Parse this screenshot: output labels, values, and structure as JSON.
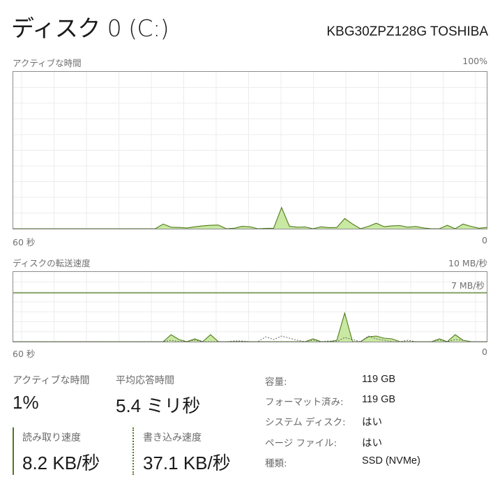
{
  "header": {
    "title": "ディスク 0 (C:)",
    "model": "KBG30ZPZ128G TOSHIBA"
  },
  "colors": {
    "line": "#4e7a1a",
    "fill": "#c9e8a2",
    "grid": "#ececec",
    "border": "#8c8c8c"
  },
  "chart_data": [
    {
      "type": "area",
      "title": "アクティブな時間",
      "ymax_label": "100%",
      "x_left_label": "60 秒",
      "x_right_label": "0",
      "ylim": [
        0,
        100
      ],
      "xlim": [
        60,
        0
      ],
      "grid": true,
      "series": [
        {
          "values": [
            0,
            0,
            0,
            0,
            0,
            0,
            0,
            0,
            0,
            0,
            0,
            0,
            0,
            0,
            0,
            0,
            0,
            0,
            0,
            3,
            1,
            0.8,
            0.5,
            1.2,
            1.8,
            2.2,
            2.3,
            0,
            0.3,
            1.5,
            1.2,
            0,
            0.2,
            0.3,
            13.5,
            1.5,
            1,
            1.1,
            0,
            1.2,
            0.7,
            0.8,
            6.5,
            3,
            0,
            1.5,
            3.5,
            1.3,
            1.8,
            2,
            1,
            1.4,
            0.5,
            0,
            0,
            2.2,
            0,
            3,
            1.5,
            0.3,
            0.8
          ]
        }
      ]
    },
    {
      "type": "area",
      "title": "ディスクの転送速度",
      "ymax_label": "10 MB/秒",
      "reference_line": {
        "value": 7,
        "label": "7 MB/秒"
      },
      "x_left_label": "60 秒",
      "x_right_label": "0",
      "ylim": [
        0,
        10
      ],
      "xlim": [
        60,
        0
      ],
      "grid": true,
      "series": [
        {
          "style": "solid",
          "values": [
            0,
            0,
            0,
            0,
            0,
            0,
            0,
            0,
            0,
            0,
            0,
            0,
            0,
            0,
            0,
            0,
            0,
            0,
            0,
            0,
            1.0,
            0.3,
            0,
            0.4,
            0,
            1.0,
            0,
            0,
            0,
            0,
            0,
            0,
            0,
            0,
            0,
            0,
            0,
            0,
            0.4,
            0,
            0,
            0.2,
            4.1,
            0,
            0,
            0.7,
            0.8,
            0.5,
            0.4,
            0,
            0,
            0,
            0,
            0,
            0.4,
            0,
            1.0,
            0.2,
            0,
            0,
            0
          ]
        },
        {
          "style": "dashed",
          "values": [
            0,
            0,
            0,
            0,
            0,
            0,
            0,
            0,
            0,
            0,
            0,
            0,
            0,
            0,
            0,
            0,
            0,
            0,
            0,
            0,
            0.2,
            0,
            0,
            0.2,
            0,
            0,
            0,
            0,
            0.1,
            0.1,
            0,
            0,
            0.7,
            0.3,
            0.8,
            0.5,
            0.2,
            0,
            0.2,
            0,
            0.1,
            0,
            0.6,
            0.3,
            0,
            0.8,
            0.4,
            0.2,
            0,
            0,
            0.2,
            0,
            0,
            0,
            0.2,
            0,
            0.3,
            0.2,
            0,
            0,
            0
          ]
        }
      ]
    }
  ],
  "stats": {
    "active_label": "アクティブな時間",
    "active_value": "1%",
    "response_label": "平均応答時間",
    "response_value": "5.4 ミリ秒",
    "read_label": "読み取り速度",
    "read_value": "8.2 KB/秒",
    "write_label": "書き込み速度",
    "write_value": "37.1 KB/秒"
  },
  "info": [
    {
      "label": "容量:",
      "value": "119 GB"
    },
    {
      "label": "フォーマット済み:",
      "value": "119 GB"
    },
    {
      "label": "システム ディスク:",
      "value": "はい"
    },
    {
      "label": "ページ ファイル:",
      "value": "はい"
    },
    {
      "label": "種類:",
      "value": "SSD (NVMe)"
    }
  ]
}
